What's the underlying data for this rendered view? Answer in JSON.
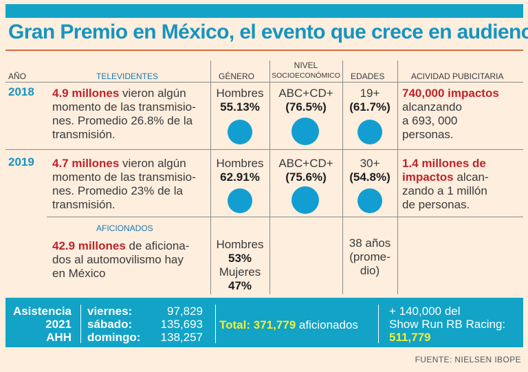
{
  "title": "Gran Premio en México, el evento que crece en audiencia",
  "headers": {
    "year": "AÑO",
    "viewers": "TELEVIDENTES",
    "gender": "GÉNERO",
    "nivel_line1": "NIVEL",
    "nivel_line2": "SOCIOECONÓMICO",
    "ages": "EDADES",
    "ads": "ACIVIDAD PUBICITARIA",
    "fans": "AFICIONADOS"
  },
  "rows": {
    "r2018": {
      "year": "2018",
      "viewers_bold": "4.9 millones",
      "viewers_l1": " vieron algún",
      "viewers_l2": "momento de las transmisio-",
      "viewers_l3": "nes. Promedio 26.8% de la",
      "viewers_l4": "transmisión.",
      "gender_label": "Hombres",
      "gender_value": "55.13%",
      "nivel_label": "ABC+CD+",
      "nivel_value": "(76.5%)",
      "age_label": "19+",
      "age_value": "(61.7%)",
      "ads_bold": "740,000 impactos",
      "ads_l2": "alcanzando",
      "ads_l3": "a 693, 000",
      "ads_l4": "personas."
    },
    "r2019": {
      "year": "2019",
      "viewers_bold": "4.7 millones",
      "viewers_l1": " vieron algún",
      "viewers_l2": "momento de las transmisio-",
      "viewers_l3": "nes. Promedio 23% de la",
      "viewers_l4": "transmisión.",
      "gender_label": "Hombres",
      "gender_value": "62.91%",
      "nivel_label": "ABC+CD+",
      "nivel_value": "(75.6%)",
      "age_label": "30+",
      "age_value": "(54.8%)",
      "ads_bold1": "1.4 millones de",
      "ads_bold2": "impactos",
      "ads_l2": " alcan-",
      "ads_l3": "zando a 1 millón",
      "ads_l4": "de personas."
    },
    "fans": {
      "bold": "42.9 millones",
      "l1": " de aficiona-",
      "l2": "dos al automovilismo hay",
      "l3": "en México",
      "gender_men_label": "Hombres",
      "gender_men_value": "53%",
      "gender_women_label": "Mujeres",
      "gender_women_value": "47%",
      "age_l1": "38 años",
      "age_l2": "(prome-",
      "age_l3": "dio)"
    }
  },
  "footer": {
    "attendance_l1": "Asistencia",
    "attendance_l2": "2021",
    "attendance_l3": "AHH",
    "day1_label": "viernes:",
    "day1_value": "97,829",
    "day2_label": "sábado:",
    "day2_value": "135,693",
    "day3_label": "domingo:",
    "day3_value": "138,257",
    "total_label": "Total: ",
    "total_value": "371,779",
    "total_suffix": " aficionados",
    "show_l1": "+ 140,000 del",
    "show_l2": "Show Run RB Racing:",
    "show_total": "511,779"
  },
  "source": "FUENTE: NIELSEN IBOPE",
  "colors": {
    "accent_blue": "#12a3c6",
    "title_blue": "#1694bf",
    "highlight_red": "#c0232b",
    "highlight_yellow": "#f4ee3a",
    "background": "#fdeede"
  }
}
